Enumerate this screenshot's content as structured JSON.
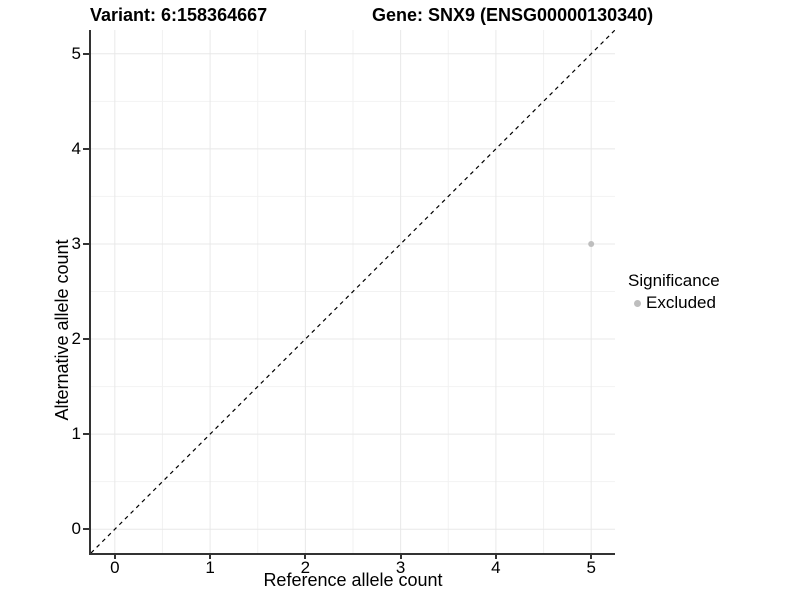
{
  "titles": {
    "variant": "Variant: 6:158364667",
    "gene": "Gene: SNX9 (ENSG00000130340)"
  },
  "chart_data": {
    "type": "scatter",
    "xlabel": "Reference allele count",
    "ylabel": "Alternative allele count",
    "xlim": [
      -0.25,
      5.25
    ],
    "ylim": [
      -0.25,
      5.25
    ],
    "x_ticks": [
      0,
      1,
      2,
      3,
      4,
      5
    ],
    "y_ticks": [
      0,
      1,
      2,
      3,
      4,
      5
    ],
    "x_minor_ticks": [
      0.5,
      1.5,
      2.5,
      3.5,
      4.5
    ],
    "y_minor_ticks": [
      0.5,
      1.5,
      2.5,
      3.5,
      4.5
    ],
    "grid": {
      "major": true,
      "minor": true
    },
    "reference_line": {
      "type": "identity",
      "slope": 1,
      "intercept": 0,
      "style": "dashed"
    },
    "series": [
      {
        "name": "Excluded",
        "color": "#BEBEBE",
        "points": [
          {
            "x": 5,
            "y": 3
          }
        ]
      }
    ],
    "legend": {
      "title": "Significance",
      "position": "right",
      "entries": [
        {
          "label": "Excluded",
          "color": "#BEBEBE"
        }
      ]
    }
  },
  "colors": {
    "background": "#FFFFFF",
    "axis_line": "#333333",
    "grid_major": "#E8E8E8",
    "grid_minor": "#F2F2F2",
    "reference_line": "#000000",
    "text": "#000000",
    "excluded_point": "#BEBEBE"
  }
}
